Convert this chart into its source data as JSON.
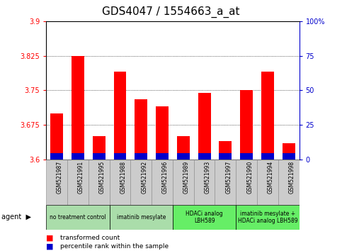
{
  "title": "GDS4047 / 1554663_a_at",
  "samples": [
    "GSM521987",
    "GSM521991",
    "GSM521995",
    "GSM521988",
    "GSM521992",
    "GSM521996",
    "GSM521989",
    "GSM521993",
    "GSM521997",
    "GSM521990",
    "GSM521994",
    "GSM521998"
  ],
  "transformed_count": [
    3.7,
    3.825,
    3.65,
    3.79,
    3.73,
    3.715,
    3.65,
    3.745,
    3.64,
    3.75,
    3.79,
    3.635
  ],
  "blue_bar_height": 0.013,
  "ymin": 3.6,
  "ymax": 3.9,
  "yticks": [
    3.6,
    3.675,
    3.75,
    3.825,
    3.9
  ],
  "ytick_labels": [
    "3.6",
    "3.675",
    "3.75",
    "3.825",
    "3.9"
  ],
  "y2ticks": [
    0,
    25,
    50,
    75,
    100
  ],
  "y2tick_labels": [
    "0",
    "25",
    "50",
    "75",
    "100%"
  ],
  "bar_color_red": "#ff0000",
  "bar_color_blue": "#0000cc",
  "bar_width": 0.6,
  "agent_groups": [
    {
      "label": "no treatment control",
      "start": 0,
      "end": 3,
      "color": "#aaddaa"
    },
    {
      "label": "imatinib mesylate",
      "start": 3,
      "end": 6,
      "color": "#aaddaa"
    },
    {
      "label": "HDACi analog\nLBH589",
      "start": 6,
      "end": 9,
      "color": "#66ee66"
    },
    {
      "label": "imatinib mesylate +\nHDACi analog LBH589",
      "start": 9,
      "end": 12,
      "color": "#66ee66"
    }
  ],
  "agent_label": "agent",
  "legend_red": "transformed count",
  "legend_blue": "percentile rank within the sample",
  "title_fontsize": 11,
  "tick_fontsize": 7,
  "sample_fontsize": 5.5,
  "legend_fontsize": 6.5,
  "axis_color_red": "#ff0000",
  "axis_color_blue": "#0000cc",
  "sample_bg_color": "#cccccc",
  "border_color": "#888888"
}
